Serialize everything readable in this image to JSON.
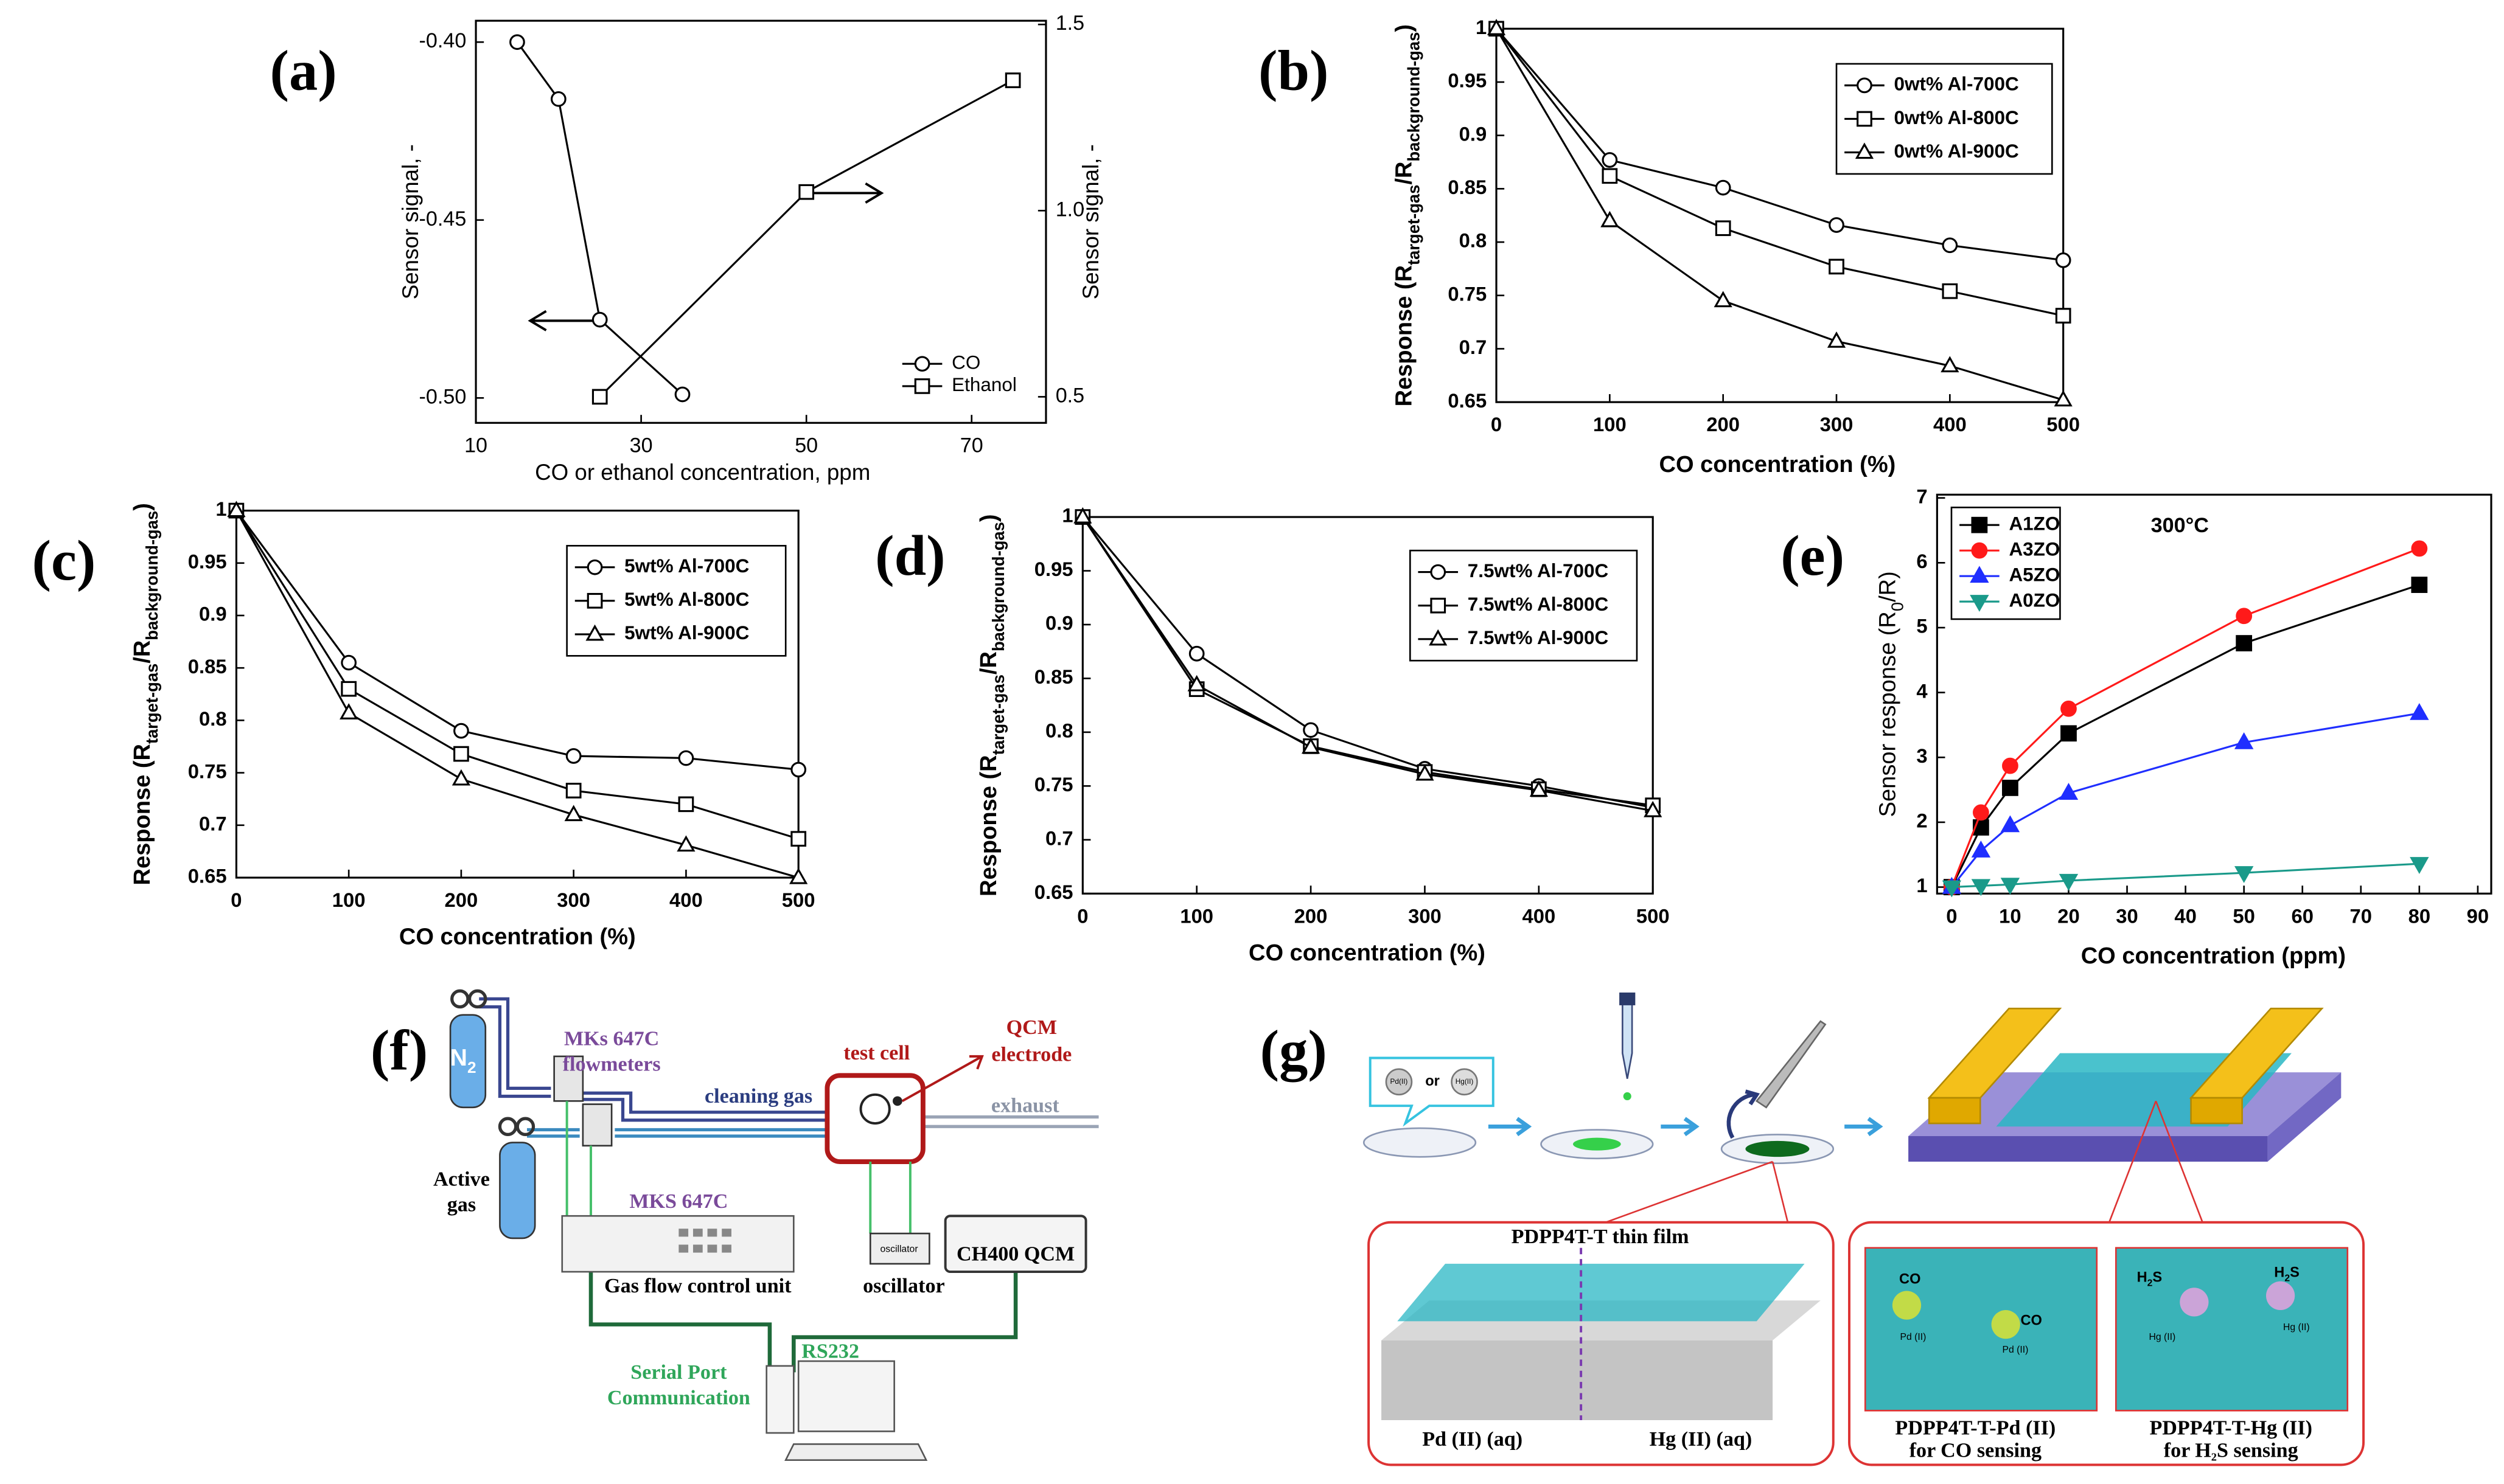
{
  "chart_data": [
    {
      "type": "line",
      "panel_label": "(a)",
      "xlabel": "CO or ethanol concentration, ppm",
      "ylabel": "Sensor signal, -",
      "y2label": "Sensor signal, -",
      "xlim": [
        10,
        79
      ],
      "xticks": [
        10,
        30,
        50,
        70
      ],
      "ylim": [
        -0.507,
        -0.394
      ],
      "yticks": [
        {
          "value": -0.4,
          "label": "-0.40"
        },
        {
          "value": -0.45,
          "label": "-0.45"
        },
        {
          "value": -0.5,
          "label": "-0.50"
        }
      ],
      "y2lim": [
        0.43,
        1.51
      ],
      "y2ticks": [
        0.5,
        {
          "value": 1,
          "label": "1.0"
        },
        1.5
      ],
      "marker_fill": "#ffffff",
      "series": [
        {
          "name": "CO",
          "color": "#000000",
          "marker": "circle",
          "x": [
            15,
            20,
            25,
            35
          ],
          "values": [
            -0.4,
            -0.416,
            -0.478,
            -0.499
          ]
        },
        {
          "name": "Ethanol",
          "color": "#000000",
          "marker": "square",
          "axis": "y2",
          "x": [
            25,
            50,
            75
          ],
          "values": [
            0.5,
            1.05,
            1.35
          ]
        }
      ]
    },
    {
      "type": "line",
      "panel_label": "(b)",
      "xlabel": "CO concentration (%)",
      "ylabel": [
        "Response (R",
        "target-gas",
        "/R",
        "background-gas",
        ")"
      ],
      "x": [
        0,
        100,
        200,
        300,
        400,
        500
      ],
      "xlim": [
        0,
        500
      ],
      "xticks": [
        0,
        100,
        200,
        300,
        400,
        500
      ],
      "ylim": [
        0.65,
        1
      ],
      "yticks": [
        0.65,
        0.7,
        0.75,
        0.8,
        0.85,
        0.9,
        0.95,
        1
      ],
      "marker_fill": "#ffffff",
      "series": [
        {
          "name": "0wt% Al-700C",
          "color": "#000000",
          "marker": "circle",
          "values": [
            1,
            0.877,
            0.851,
            0.816,
            0.797,
            0.783
          ]
        },
        {
          "name": "0wt% Al-800C",
          "color": "#000000",
          "marker": "square",
          "values": [
            1,
            0.862,
            0.813,
            0.777,
            0.754,
            0.731
          ]
        },
        {
          "name": "0wt% Al-900C",
          "color": "#000000",
          "marker": "triangle",
          "values": [
            1,
            0.82,
            0.745,
            0.707,
            0.684,
            0.652
          ]
        }
      ]
    },
    {
      "type": "line",
      "panel_label": "(c)",
      "xlabel": "CO concentration (%)",
      "ylabel": [
        "Response (R",
        "target-gas",
        "/R",
        "background-gas",
        ")"
      ],
      "x": [
        0,
        100,
        200,
        300,
        400,
        500
      ],
      "xlim": [
        0,
        500
      ],
      "xticks": [
        0,
        100,
        200,
        300,
        400,
        500
      ],
      "ylim": [
        0.65,
        1
      ],
      "yticks": [
        0.65,
        0.7,
        0.75,
        0.8,
        0.85,
        0.9,
        0.95,
        1
      ],
      "marker_fill": "#ffffff",
      "series": [
        {
          "name": "5wt% Al-700C",
          "color": "#000000",
          "marker": "circle",
          "values": [
            1,
            0.855,
            0.79,
            0.766,
            0.764,
            0.753
          ]
        },
        {
          "name": "5wt% Al-800C",
          "color": "#000000",
          "marker": "square",
          "values": [
            1,
            0.83,
            0.768,
            0.733,
            0.72,
            0.687
          ]
        },
        {
          "name": "5wt% Al-900C",
          "color": "#000000",
          "marker": "triangle",
          "values": [
            1,
            0.807,
            0.744,
            0.71,
            0.681,
            0.65
          ]
        }
      ]
    },
    {
      "type": "line",
      "panel_label": "(d)",
      "xlabel": "CO concentration (%)",
      "ylabel": [
        "Response (R",
        "target-gas",
        "/R",
        "background-gas",
        ")"
      ],
      "x": [
        0,
        100,
        200,
        300,
        400,
        500
      ],
      "xlim": [
        0,
        500
      ],
      "xticks": [
        0,
        100,
        200,
        300,
        400,
        500
      ],
      "ylim": [
        0.65,
        1
      ],
      "yticks": [
        0.65,
        0.7,
        0.75,
        0.8,
        0.85,
        0.9,
        0.95,
        1
      ],
      "marker_fill": "#ffffff",
      "series": [
        {
          "name": "7.5wt% Al-700C",
          "color": "#000000",
          "marker": "circle",
          "values": [
            1,
            0.873,
            0.802,
            0.766,
            0.75,
            0.73
          ]
        },
        {
          "name": "7.5wt% Al-800C",
          "color": "#000000",
          "marker": "square",
          "values": [
            1,
            0.84,
            0.787,
            0.763,
            0.747,
            0.732
          ]
        },
        {
          "name": "7.5wt% Al-900C",
          "color": "#000000",
          "marker": "triangle",
          "values": [
            1,
            0.844,
            0.786,
            0.761,
            0.746,
            0.727
          ]
        }
      ]
    },
    {
      "type": "line",
      "panel_label": "(e)",
      "xlabel": "CO concentration (ppm)",
      "ylabel": [
        "Sensor response  (R",
        "0",
        "/R)"
      ],
      "annotation": "300°C",
      "x": [
        0,
        5,
        10,
        20,
        50,
        80
      ],
      "xlim": [
        -2.5,
        92.3
      ],
      "xticks": [
        0,
        10,
        20,
        30,
        40,
        50,
        60,
        70,
        80,
        90
      ],
      "ylim": [
        0.9,
        7.05
      ],
      "yticks": [
        1,
        2,
        3,
        4,
        5,
        6,
        7
      ],
      "series": [
        {
          "name": "A1ZO",
          "color": "#000000",
          "marker": "square",
          "values": [
            1,
            1.92,
            2.53,
            3.37,
            4.76,
            5.66
          ]
        },
        {
          "name": "A3ZO",
          "color": "#ff1a1a",
          "marker": "circle",
          "values": [
            1,
            2.15,
            2.87,
            3.75,
            5.18,
            6.22
          ]
        },
        {
          "name": "A5ZO",
          "color": "#1f2eff",
          "marker": "triangle",
          "values": [
            1,
            1.56,
            1.95,
            2.45,
            3.23,
            3.68
          ]
        },
        {
          "name": "A0ZO",
          "color": "#1a9a8a",
          "marker": "triangle-down",
          "values": [
            1,
            1.02,
            1.04,
            1.1,
            1.22,
            1.36
          ]
        }
      ]
    }
  ],
  "diagram_f": {
    "panel_label": "(f)",
    "flowmeters": [
      "MKs 647C",
      "flowmeters"
    ],
    "qcm": [
      "QCM",
      "electrode"
    ],
    "test_cell": "test cell",
    "cleaning_gas": "cleaning gas",
    "exhaust": "exhaust",
    "n2": [
      "N",
      "2"
    ],
    "active_gas": [
      "Active",
      "gas"
    ],
    "controller_title": "MKS 647C",
    "controller": "Gas flow control unit",
    "oscillator": "oscillator",
    "qcm_unit": "CH400 QCM",
    "rs232": "RS232",
    "serial": [
      "Serial Port",
      "Communication"
    ]
  },
  "diagram_g": {
    "panel_label": "(g)",
    "pd": "Pd(II)",
    "or": "or",
    "hg": "Hg(II)",
    "film": "PDPP4T-T thin film",
    "pd_aq": "Pd (II) (aq)",
    "hg_aq": "Hg (II) (aq)",
    "co": "CO",
    "pd_site": "Pd (II)",
    "h2s": [
      "H",
      "2",
      "S"
    ],
    "hg_site": "Hg (II)",
    "pd_title": [
      "PDPP4T-T-Pd (II)",
      "for CO sensing"
    ],
    "hg_title": [
      "PDPP4T-T-Hg (II)",
      "for H",
      "2",
      "S sensing"
    ]
  }
}
